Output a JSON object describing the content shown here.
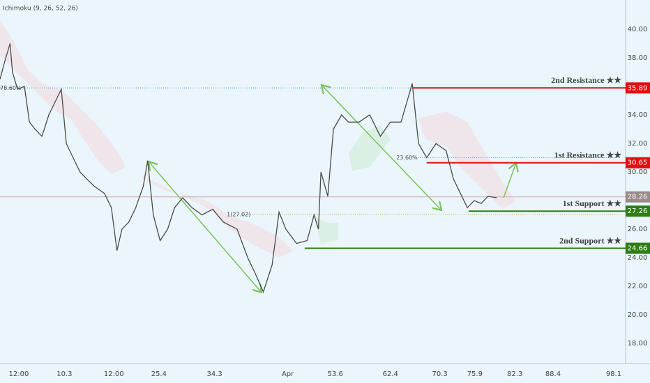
{
  "chart_data": {
    "type": "line",
    "indicator": "Ichimoku (9, 26, 52, 26)",
    "color": "#4a4a4a",
    "x": [
      0,
      0.6,
      1.6,
      2.0,
      2.8,
      3.9,
      4.7,
      5.6,
      6.7,
      7.8,
      9.8,
      10.6,
      11.7,
      12.8,
      13.9,
      15.1,
      16.7,
      17.8,
      18.7,
      19.5,
      20.6,
      21.7,
      22.9,
      23.6,
      24.5,
      25.6,
      26.8,
      27.9,
      29.2,
      30.7,
      32.3,
      34.0,
      35.7,
      37.9,
      39.6,
      40.7,
      42.1,
      43.5,
      44.6,
      45.7,
      47.4,
      49.1,
      50.2,
      50.9,
      51.3,
      52.4,
      53.3,
      54.6,
      55.7,
      57.4,
      59.1,
      60.8,
      62.4,
      64.1,
      65.9,
      66.9,
      68.2,
      69.7,
      71.3,
      72.5,
      73.6,
      74.7,
      75.8,
      76.9,
      78.0,
      79.4
    ],
    "values": [
      36.5,
      37.5,
      39.0,
      37.0,
      35.8,
      36.0,
      33.5,
      33.0,
      32.5,
      34.0,
      35.8,
      32.0,
      31.0,
      30.0,
      29.5,
      29.0,
      28.5,
      27.5,
      24.5,
      26.0,
      26.5,
      27.5,
      29.0,
      30.8,
      27.0,
      25.2,
      26.0,
      27.5,
      28.2,
      27.5,
      27.0,
      27.4,
      26.5,
      26.0,
      24.0,
      23.0,
      21.6,
      23.5,
      27.2,
      26.0,
      25.0,
      25.2,
      27.0,
      26.0,
      30.0,
      28.3,
      33.0,
      34.0,
      33.5,
      33.5,
      34.0,
      32.5,
      33.5,
      33.5,
      36.2,
      32.0,
      31.0,
      32.0,
      31.5,
      29.5,
      28.5,
      27.5,
      28.0,
      27.8,
      28.3,
      28.2
    ],
    "xlim": [
      0,
      100
    ],
    "xticks": [
      {
        "value": 3.0,
        "label": "12:00"
      },
      10.3,
      {
        "value": 18.2,
        "label": "12:00"
      },
      25.4,
      34.3,
      {
        "value": 46.0,
        "label": "Apr"
      },
      53.6,
      62.4,
      70.3,
      75.9,
      82.3,
      88.4,
      98.1
    ],
    "xtick_labels_note_free": null,
    "ylim": [
      16.59,
      42.05
    ],
    "yticks": [
      {
        "value": 18,
        "label": "18.00"
      },
      {
        "value": 20,
        "label": "20.00"
      },
      {
        "value": 22,
        "label": "22.00"
      },
      {
        "value": 24,
        "label": "24.00"
      },
      {
        "value": 26,
        "label": "26.00"
      },
      {
        "value": 30,
        "label": "30.00"
      },
      {
        "value": 32,
        "label": "32.00"
      },
      {
        "value": 34,
        "label": "34.00"
      },
      {
        "value": 38,
        "label": "38.00"
      },
      {
        "value": 40,
        "label": "40.00"
      }
    ],
    "last_price": 28.26,
    "levels": [
      {
        "name": "2nd Resistance ★★",
        "value": 35.89,
        "color": "#e01010",
        "start": 65.9
      },
      {
        "name": "1st Resistance ★★",
        "value": 30.65,
        "color": "#e01010",
        "start": 68.2
      },
      {
        "name": "1st Support ★★",
        "value": 27.26,
        "color": "#2e7d14",
        "start": 74.9
      },
      {
        "name": "2nd Support ★★",
        "value": 24.66,
        "color": "#2e7d14",
        "start": 48.7
      }
    ],
    "fib_lines": [
      {
        "label": "78.60%",
        "value": 35.89,
        "start": 0,
        "end": 65.9,
        "color": "#4a8ac4"
      },
      {
        "label": "23.60%",
        "value": 31.0,
        "start": 65.8,
        "end": 98.7,
        "color": "#4a8ac4"
      },
      {
        "label": "1(27.02)",
        "value": 27.02,
        "start": 38.7,
        "end": 99.5,
        "color": "#e0a020"
      }
    ]
  }
}
